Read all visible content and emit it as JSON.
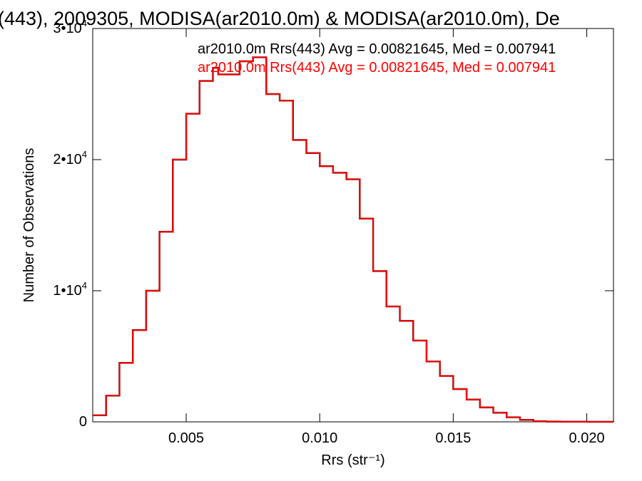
{
  "chart_data": {
    "type": "histogram",
    "title": "(443), 2009305, MODISA(ar2010.0m) & MODISA(ar2010.0m), De",
    "xlabel": "Rrs (str⁻¹)",
    "ylabel": "Number of Observations",
    "xlim": [
      0.0015,
      0.021
    ],
    "ylim": [
      0,
      30000
    ],
    "x_ticks": [
      0.005,
      0.01,
      0.015,
      0.02
    ],
    "x_tick_labels": [
      "0.005",
      "0.010",
      "0.015",
      "0.020"
    ],
    "y_ticks": [
      0,
      10000,
      20000,
      30000
    ],
    "y_tick_labels": [
      {
        "base": "0",
        "exp": ""
      },
      {
        "base": "1•10",
        "exp": "4"
      },
      {
        "base": "2•10",
        "exp": "4"
      },
      {
        "base": "3•10",
        "exp": "4"
      }
    ],
    "grid": false,
    "legend_position": "top-right",
    "colors": {
      "series_a": "#000000",
      "series_b": "#ff0000"
    },
    "series": [
      {
        "name": "ar2010.0m Rrs(443) Avg = 0.00821645, Med = 0.007941",
        "color": "#000000",
        "x": [
          0.0015,
          0.002,
          0.0025,
          0.003,
          0.0035,
          0.004,
          0.0045,
          0.005,
          0.0055,
          0.006,
          0.0062,
          0.0065,
          0.007,
          0.0075,
          0.008,
          0.0085,
          0.009,
          0.0095,
          0.01,
          0.0105,
          0.011,
          0.0115,
          0.012,
          0.0125,
          0.013,
          0.0135,
          0.014,
          0.0145,
          0.015,
          0.0155,
          0.016,
          0.0165,
          0.017,
          0.0175,
          0.018,
          0.0185,
          0.019,
          0.02,
          0.021
        ],
        "y": [
          500,
          2000,
          4500,
          7000,
          10000,
          14500,
          20000,
          23500,
          26000,
          27000,
          26500,
          26500,
          27500,
          27800,
          25000,
          24500,
          21500,
          20500,
          19500,
          19000,
          18500,
          15500,
          11500,
          8800,
          7700,
          6200,
          4600,
          3500,
          2500,
          1700,
          1100,
          700,
          350,
          150,
          50,
          20,
          10,
          5,
          0
        ]
      },
      {
        "name": "ar2010.0m Rrs(443) Avg = 0.00821645, Med = 0.007941",
        "color": "#ff0000",
        "x": [
          0.0015,
          0.002,
          0.0025,
          0.003,
          0.0035,
          0.004,
          0.0045,
          0.005,
          0.0055,
          0.006,
          0.0062,
          0.0065,
          0.007,
          0.0075,
          0.008,
          0.0085,
          0.009,
          0.0095,
          0.01,
          0.0105,
          0.011,
          0.0115,
          0.012,
          0.0125,
          0.013,
          0.0135,
          0.014,
          0.0145,
          0.015,
          0.0155,
          0.016,
          0.0165,
          0.017,
          0.0175,
          0.018,
          0.0185,
          0.019,
          0.02,
          0.021
        ],
        "y": [
          500,
          2000,
          4500,
          7000,
          10000,
          14500,
          20000,
          23500,
          26000,
          27000,
          26500,
          26500,
          27500,
          27800,
          25000,
          24500,
          21500,
          20500,
          19500,
          19000,
          18500,
          15500,
          11500,
          8800,
          7700,
          6200,
          4600,
          3500,
          2500,
          1700,
          1100,
          700,
          350,
          150,
          50,
          20,
          10,
          5,
          0
        ]
      }
    ]
  }
}
